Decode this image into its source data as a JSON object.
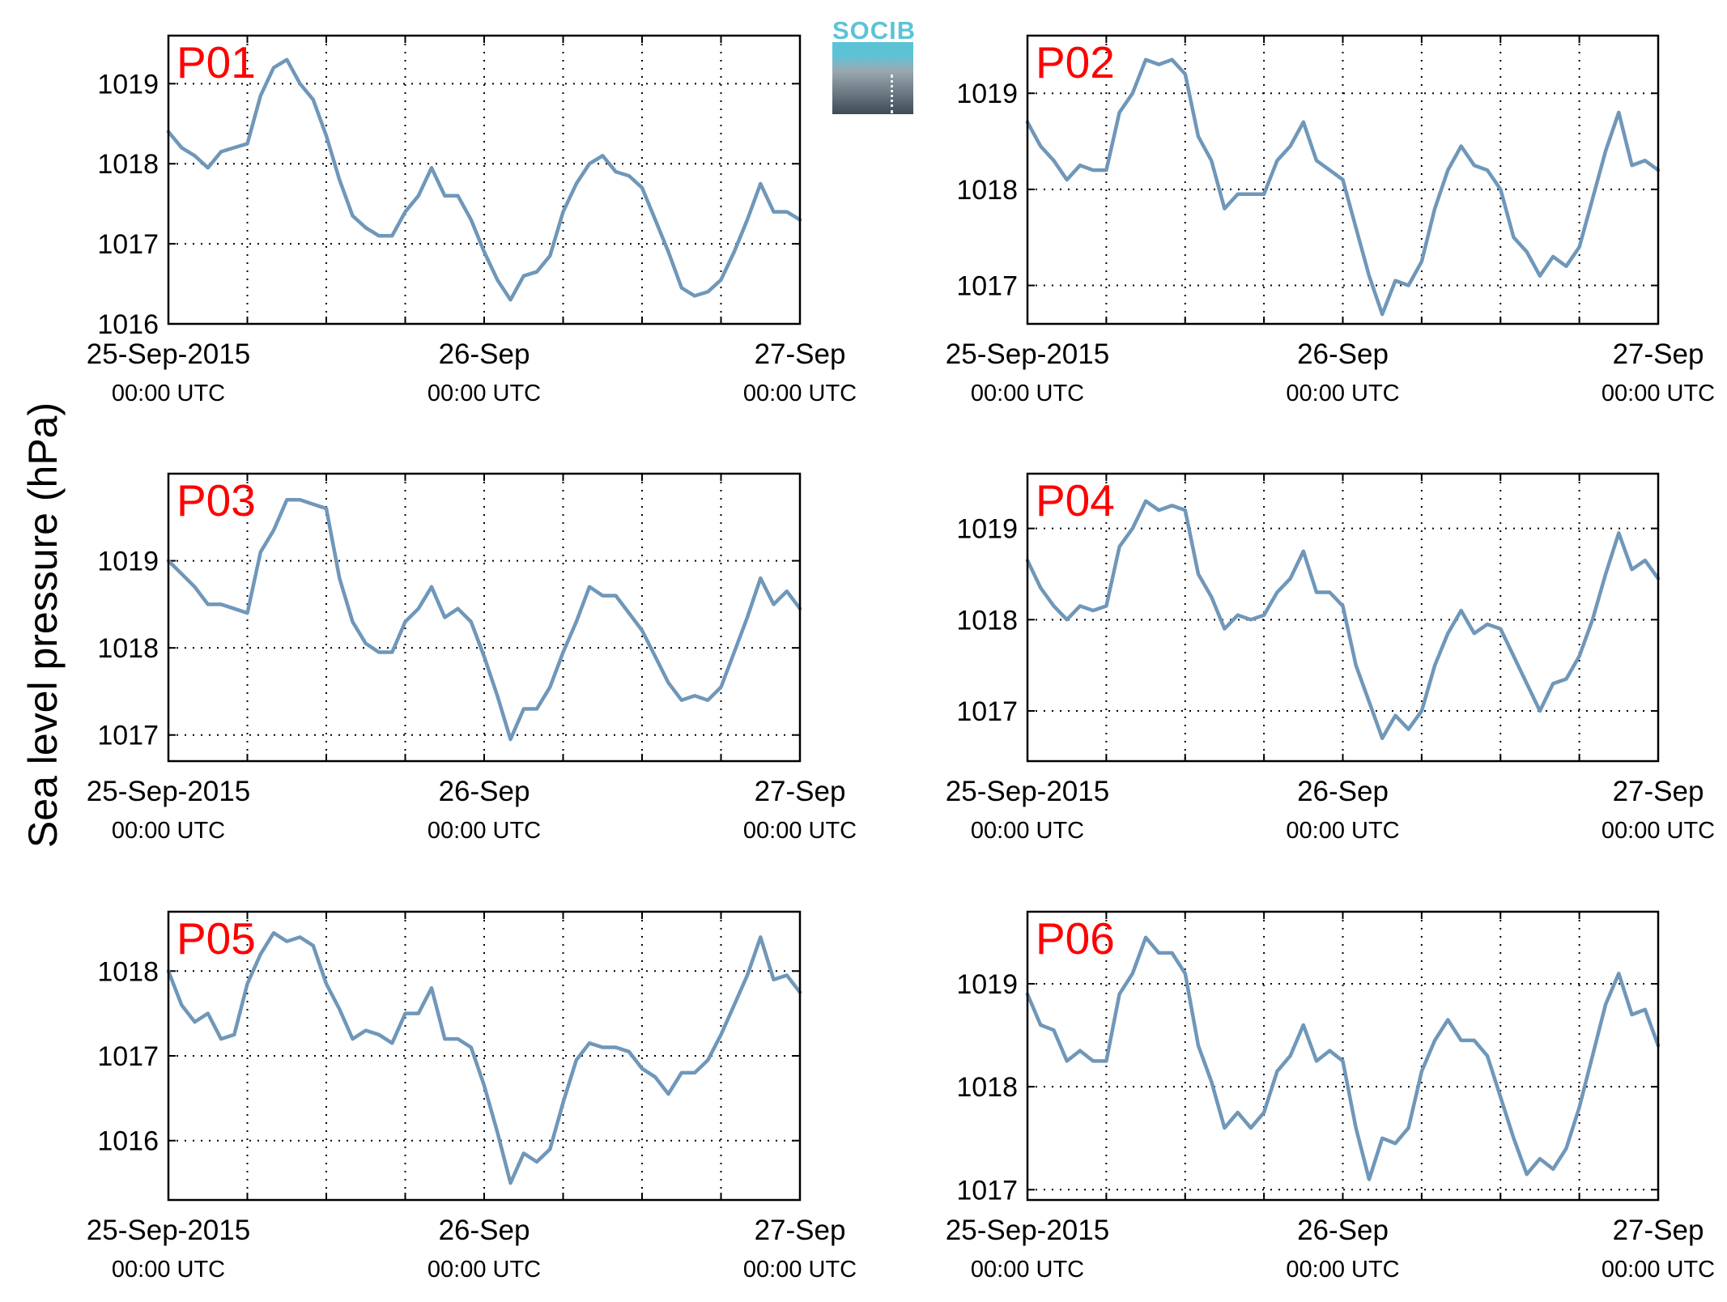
{
  "figure": {
    "ylabel": "Sea level pressure (hPa)",
    "logo_text": "SOCIB",
    "x_tick_labels": [
      {
        "date": "25-Sep-2015",
        "time": "00:00 UTC"
      },
      {
        "date": "26-Sep",
        "time": "00:00 UTC"
      },
      {
        "date": "27-Sep",
        "time": "00:00 UTC"
      }
    ],
    "line_color": "#6f97b9",
    "label_color": "#ff0000"
  },
  "chart_data": [
    {
      "type": "line",
      "panel": "P01",
      "x_unit": "hours since 25-Sep-2015 00:00 UTC",
      "xlim": [
        0,
        48
      ],
      "ylim": [
        1016,
        1019.6
      ],
      "yticks": [
        1016,
        1017,
        1018,
        1019
      ],
      "grid": true,
      "x": [
        0,
        1,
        2,
        3,
        4,
        5,
        6,
        7,
        8,
        9,
        10,
        11,
        12,
        13,
        14,
        15,
        16,
        17,
        18,
        19,
        20,
        21,
        22,
        23,
        24,
        25,
        26,
        27,
        28,
        29,
        30,
        31,
        32,
        33,
        34,
        35,
        36,
        37,
        38,
        39,
        40,
        41,
        42,
        43,
        44,
        45,
        46,
        47,
        48
      ],
      "y": [
        1018.4,
        1018.2,
        1018.1,
        1017.95,
        1018.15,
        1018.2,
        1018.25,
        1018.85,
        1019.2,
        1019.3,
        1019.0,
        1018.8,
        1018.35,
        1017.8,
        1017.35,
        1017.2,
        1017.1,
        1017.1,
        1017.4,
        1017.6,
        1017.95,
        1017.6,
        1017.6,
        1017.3,
        1016.9,
        1016.55,
        1016.3,
        1016.6,
        1016.65,
        1016.85,
        1017.4,
        1017.75,
        1018.0,
        1018.1,
        1017.9,
        1017.85,
        1017.7,
        1017.3,
        1016.9,
        1016.45,
        1016.35,
        1016.4,
        1016.55,
        1016.9,
        1017.3,
        1017.75,
        1017.4,
        1017.4,
        1017.3
      ]
    },
    {
      "type": "line",
      "panel": "P02",
      "x_unit": "hours since 25-Sep-2015 00:00 UTC",
      "xlim": [
        0,
        48
      ],
      "ylim": [
        1016.6,
        1019.6
      ],
      "yticks": [
        1017,
        1018,
        1019
      ],
      "grid": true,
      "x": [
        0,
        1,
        2,
        3,
        4,
        5,
        6,
        7,
        8,
        9,
        10,
        11,
        12,
        13,
        14,
        15,
        16,
        17,
        18,
        19,
        20,
        21,
        22,
        23,
        24,
        25,
        26,
        27,
        28,
        29,
        30,
        31,
        32,
        33,
        34,
        35,
        36,
        37,
        38,
        39,
        40,
        41,
        42,
        43,
        44,
        45,
        46,
        47,
        48
      ],
      "y": [
        1018.7,
        1018.45,
        1018.3,
        1018.1,
        1018.25,
        1018.2,
        1018.2,
        1018.8,
        1019.0,
        1019.35,
        1019.3,
        1019.35,
        1019.2,
        1018.55,
        1018.3,
        1017.8,
        1017.95,
        1017.95,
        1017.95,
        1018.3,
        1018.45,
        1018.7,
        1018.3,
        1018.2,
        1018.1,
        1017.6,
        1017.1,
        1016.7,
        1017.05,
        1017.0,
        1017.25,
        1017.8,
        1018.2,
        1018.45,
        1018.25,
        1018.2,
        1018.0,
        1017.5,
        1017.35,
        1017.1,
        1017.3,
        1017.2,
        1017.4,
        1017.9,
        1018.4,
        1018.8,
        1018.25,
        1018.3,
        1018.2
      ]
    },
    {
      "type": "line",
      "panel": "P03",
      "x_unit": "hours since 25-Sep-2015 00:00 UTC",
      "xlim": [
        0,
        48
      ],
      "ylim": [
        1016.7,
        1020.0
      ],
      "yticks": [
        1017,
        1018,
        1019
      ],
      "grid": true,
      "x": [
        0,
        1,
        2,
        3,
        4,
        5,
        6,
        7,
        8,
        9,
        10,
        11,
        12,
        13,
        14,
        15,
        16,
        17,
        18,
        19,
        20,
        21,
        22,
        23,
        24,
        25,
        26,
        27,
        28,
        29,
        30,
        31,
        32,
        33,
        34,
        35,
        36,
        37,
        38,
        39,
        40,
        41,
        42,
        43,
        44,
        45,
        46,
        47,
        48
      ],
      "y": [
        1019.0,
        1018.85,
        1018.7,
        1018.5,
        1018.5,
        1018.45,
        1018.4,
        1019.1,
        1019.35,
        1019.7,
        1019.7,
        1019.65,
        1019.6,
        1018.8,
        1018.3,
        1018.05,
        1017.95,
        1017.95,
        1018.3,
        1018.45,
        1018.7,
        1018.35,
        1018.45,
        1018.3,
        1017.9,
        1017.45,
        1016.95,
        1017.3,
        1017.3,
        1017.55,
        1017.95,
        1018.3,
        1018.7,
        1018.6,
        1018.6,
        1018.4,
        1018.2,
        1017.9,
        1017.6,
        1017.4,
        1017.45,
        1017.4,
        1017.55,
        1017.95,
        1018.35,
        1018.8,
        1018.5,
        1018.65,
        1018.45
      ]
    },
    {
      "type": "line",
      "panel": "P04",
      "x_unit": "hours since 25-Sep-2015 00:00 UTC",
      "xlim": [
        0,
        48
      ],
      "ylim": [
        1016.45,
        1019.6
      ],
      "yticks": [
        1017,
        1018,
        1019
      ],
      "grid": true,
      "x": [
        0,
        1,
        2,
        3,
        4,
        5,
        6,
        7,
        8,
        9,
        10,
        11,
        12,
        13,
        14,
        15,
        16,
        17,
        18,
        19,
        20,
        21,
        22,
        23,
        24,
        25,
        26,
        27,
        28,
        29,
        30,
        31,
        32,
        33,
        34,
        35,
        36,
        37,
        38,
        39,
        40,
        41,
        42,
        43,
        44,
        45,
        46,
        47,
        48
      ],
      "y": [
        1018.65,
        1018.35,
        1018.15,
        1018.0,
        1018.15,
        1018.1,
        1018.15,
        1018.8,
        1019.0,
        1019.3,
        1019.2,
        1019.25,
        1019.2,
        1018.5,
        1018.25,
        1017.9,
        1018.05,
        1018.0,
        1018.05,
        1018.3,
        1018.45,
        1018.75,
        1018.3,
        1018.3,
        1018.15,
        1017.5,
        1017.1,
        1016.7,
        1016.95,
        1016.8,
        1017.0,
        1017.5,
        1017.85,
        1018.1,
        1017.85,
        1017.95,
        1017.9,
        1017.6,
        1017.3,
        1017.0,
        1017.3,
        1017.35,
        1017.6,
        1018.0,
        1018.5,
        1018.95,
        1018.55,
        1018.65,
        1018.45
      ]
    },
    {
      "type": "line",
      "panel": "P05",
      "x_unit": "hours since 25-Sep-2015 00:00 UTC",
      "xlim": [
        0,
        48
      ],
      "ylim": [
        1015.3,
        1018.7
      ],
      "yticks": [
        1016,
        1017,
        1018
      ],
      "grid": true,
      "x": [
        0,
        1,
        2,
        3,
        4,
        5,
        6,
        7,
        8,
        9,
        10,
        11,
        12,
        13,
        14,
        15,
        16,
        17,
        18,
        19,
        20,
        21,
        22,
        23,
        24,
        25,
        26,
        27,
        28,
        29,
        30,
        31,
        32,
        33,
        34,
        35,
        36,
        37,
        38,
        39,
        40,
        41,
        42,
        43,
        44,
        45,
        46,
        47,
        48
      ],
      "y": [
        1018.0,
        1017.6,
        1017.4,
        1017.5,
        1017.2,
        1017.25,
        1017.85,
        1018.2,
        1018.45,
        1018.35,
        1018.4,
        1018.3,
        1017.85,
        1017.55,
        1017.2,
        1017.3,
        1017.25,
        1017.15,
        1017.5,
        1017.5,
        1017.8,
        1017.2,
        1017.2,
        1017.1,
        1016.65,
        1016.1,
        1015.5,
        1015.85,
        1015.75,
        1015.9,
        1016.45,
        1016.95,
        1017.15,
        1017.1,
        1017.1,
        1017.05,
        1016.85,
        1016.75,
        1016.55,
        1016.8,
        1016.8,
        1016.95,
        1017.25,
        1017.6,
        1017.95,
        1018.4,
        1017.9,
        1017.95,
        1017.75
      ]
    },
    {
      "type": "line",
      "panel": "P06",
      "x_unit": "hours since 25-Sep-2015 00:00 UTC",
      "xlim": [
        0,
        48
      ],
      "ylim": [
        1016.9,
        1019.7
      ],
      "yticks": [
        1017,
        1018,
        1019
      ],
      "grid": true,
      "x": [
        0,
        1,
        2,
        3,
        4,
        5,
        6,
        7,
        8,
        9,
        10,
        11,
        12,
        13,
        14,
        15,
        16,
        17,
        18,
        19,
        20,
        21,
        22,
        23,
        24,
        25,
        26,
        27,
        28,
        29,
        30,
        31,
        32,
        33,
        34,
        35,
        36,
        37,
        38,
        39,
        40,
        41,
        42,
        43,
        44,
        45,
        46,
        47,
        48
      ],
      "y": [
        1018.9,
        1018.6,
        1018.55,
        1018.25,
        1018.35,
        1018.25,
        1018.25,
        1018.9,
        1019.1,
        1019.45,
        1019.3,
        1019.3,
        1019.1,
        1018.4,
        1018.05,
        1017.6,
        1017.75,
        1017.6,
        1017.75,
        1018.15,
        1018.3,
        1018.6,
        1018.25,
        1018.35,
        1018.25,
        1017.6,
        1017.1,
        1017.5,
        1017.45,
        1017.6,
        1018.15,
        1018.45,
        1018.65,
        1018.45,
        1018.45,
        1018.3,
        1017.9,
        1017.5,
        1017.15,
        1017.3,
        1017.2,
        1017.4,
        1017.8,
        1018.3,
        1018.8,
        1019.1,
        1018.7,
        1018.75,
        1018.4
      ]
    }
  ]
}
